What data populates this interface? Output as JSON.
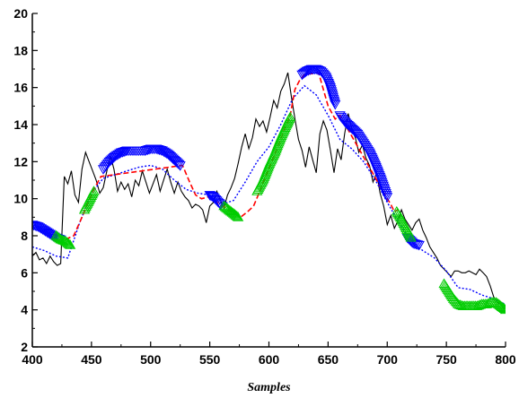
{
  "chart_data": {
    "type": "line",
    "title": "",
    "xlabel": "Samples",
    "ylabel": "",
    "xlim": [
      400,
      800
    ],
    "ylim": [
      2,
      20
    ],
    "x_ticks": [
      400,
      450,
      500,
      550,
      600,
      650,
      700,
      750,
      800
    ],
    "y_ticks": [
      2,
      4,
      6,
      8,
      10,
      12,
      14,
      16,
      18,
      20
    ],
    "grid": false,
    "legend": "none",
    "colors": {
      "measured": "#000000",
      "smooth": "#0000ff",
      "transition": "#ff0000",
      "regime_a": "#0000ff",
      "regime_b": "#00cc00"
    },
    "series": [
      {
        "key": "measured",
        "style": "solid",
        "x": [
          400,
          403,
          406,
          409,
          412,
          415,
          418,
          421,
          424,
          427,
          430,
          433,
          436,
          439,
          442,
          445,
          448,
          451,
          454,
          457,
          460,
          463,
          466,
          469,
          472,
          475,
          478,
          481,
          484,
          487,
          490,
          493,
          496,
          499,
          502,
          505,
          508,
          511,
          514,
          517,
          520,
          523,
          526,
          529,
          532,
          535,
          538,
          541,
          544,
          547,
          550,
          553,
          556,
          559,
          562,
          565,
          568,
          571,
          574,
          577,
          580,
          583,
          586,
          589,
          592,
          595,
          598,
          601,
          604,
          607,
          610,
          613,
          616,
          619,
          622,
          625,
          628,
          631,
          634,
          637,
          640,
          643,
          646,
          649,
          652,
          655,
          658,
          661,
          664,
          667,
          670,
          673,
          676,
          679,
          682,
          685,
          688,
          691,
          694,
          697,
          700,
          703,
          706,
          709,
          712,
          715,
          718,
          721,
          724,
          727,
          730,
          733,
          736,
          739,
          742,
          745,
          748,
          751,
          754,
          757,
          760,
          763,
          766,
          769,
          772,
          775,
          778,
          781,
          784,
          787,
          790,
          793,
          796,
          799
        ],
        "y": [
          6.9,
          7.1,
          6.7,
          6.8,
          6.5,
          6.9,
          6.6,
          6.4,
          6.5,
          11.2,
          10.8,
          11.5,
          10.2,
          9.8,
          11.6,
          12.5,
          12.0,
          11.5,
          11.0,
          10.3,
          10.6,
          11.5,
          12.3,
          11.6,
          10.4,
          10.9,
          10.5,
          10.8,
          10.1,
          11.0,
          10.7,
          11.5,
          10.9,
          10.3,
          10.8,
          11.3,
          10.4,
          11.0,
          11.6,
          10.9,
          10.3,
          10.9,
          10.4,
          10.1,
          9.9,
          9.5,
          9.7,
          9.6,
          9.4,
          8.7,
          9.6,
          9.8,
          10.4,
          9.9,
          9.5,
          10.2,
          10.6,
          11.1,
          11.9,
          12.8,
          13.5,
          12.7,
          13.3,
          14.3,
          13.9,
          14.2,
          13.6,
          14.4,
          15.3,
          14.9,
          15.8,
          16.2,
          16.8,
          15.5,
          14.3,
          13.2,
          12.6,
          11.7,
          12.8,
          12.1,
          11.4,
          13.5,
          14.2,
          13.7,
          12.6,
          11.4,
          12.7,
          12.1,
          13.5,
          14.6,
          13.8,
          13.3,
          12.5,
          12.9,
          12.2,
          11.8,
          10.9,
          11.4,
          10.3,
          9.6,
          8.6,
          9.1,
          8.4,
          8.8,
          9.4,
          8.9,
          8.6,
          8.3,
          8.7,
          8.9,
          8.3,
          7.9,
          7.4,
          7.1,
          6.8,
          6.4,
          6.2,
          6.0,
          5.8,
          6.1,
          6.1,
          6.0,
          6.0,
          6.1,
          6.0,
          5.9,
          6.2,
          6.0,
          5.8,
          5.3,
          4.7,
          4.4,
          4.3,
          4.0
        ]
      },
      {
        "key": "smooth",
        "style": "dotted",
        "x": [
          400,
          410,
          420,
          430,
          440,
          450,
          460,
          470,
          480,
          490,
          500,
          510,
          520,
          530,
          540,
          550,
          560,
          570,
          580,
          590,
          600,
          610,
          620,
          630,
          640,
          650,
          660,
          670,
          680,
          690,
          700,
          710,
          720,
          730,
          740,
          750,
          760,
          770,
          780,
          790,
          800
        ],
        "y": [
          7.4,
          7.2,
          6.9,
          6.8,
          8.7,
          10.3,
          11.1,
          11.3,
          11.5,
          11.7,
          11.8,
          11.6,
          11.0,
          10.5,
          10.3,
          10.2,
          9.7,
          9.9,
          10.9,
          12.0,
          12.8,
          14.0,
          15.4,
          16.1,
          15.6,
          14.5,
          13.2,
          12.7,
          12.0,
          11.0,
          9.8,
          8.7,
          7.7,
          7.2,
          6.8,
          6.1,
          5.2,
          5.1,
          4.8,
          4.6,
          4.3
        ]
      },
      {
        "key": "transition",
        "style": "dashed",
        "x": [
          428,
          435,
          442,
          452,
          458,
          527,
          533,
          538,
          543,
          549,
          576,
          582,
          587,
          591,
          618,
          622,
          626,
          630,
          642,
          650,
          656,
          660,
          700,
          703,
          706,
          709
        ],
        "y": [
          7.8,
          8.0,
          9.0,
          10.5,
          11.2,
          11.8,
          10.9,
          10.2,
          10.0,
          10.1,
          9.0,
          9.3,
          9.6,
          10.2,
          14.5,
          15.9,
          16.4,
          16.7,
          16.8,
          15.0,
          14.3,
          14.5,
          10.0,
          9.7,
          9.3,
          9.4
        ]
      },
      {
        "key": "regime_a",
        "style": "triangles-down",
        "segments": [
          {
            "x": [
              400,
              405,
              410,
              415,
              420,
              424
            ],
            "y": [
              8.6,
              8.5,
              8.3,
              8.1,
              7.9,
              7.8
            ]
          },
          {
            "x": [
              460,
              465,
              470,
              475,
              480,
              485,
              490,
              495,
              500,
              505,
              510,
              515,
              520,
              525
            ],
            "y": [
              11.6,
              12.0,
              12.3,
              12.5,
              12.6,
              12.6,
              12.6,
              12.6,
              12.7,
              12.7,
              12.6,
              12.4,
              12.1,
              11.8
            ]
          },
          {
            "x": [
              550,
              553,
              556,
              559
            ],
            "y": [
              10.2,
              10.1,
              9.9,
              9.7
            ]
          },
          {
            "x": [
              628,
              632,
              636,
              640,
              644,
              648,
              652,
              656
            ],
            "y": [
              16.7,
              16.9,
              17.0,
              17.0,
              16.9,
              16.6,
              16.0,
              15.1
            ]
          },
          {
            "x": [
              660,
              665,
              670,
              675,
              680,
              685,
              690,
              695,
              700
            ],
            "y": [
              14.5,
              14.1,
              13.8,
              13.5,
              13.0,
              12.5,
              11.8,
              11.0,
              10.1
            ]
          },
          {
            "x": [
              717,
              722,
              727
            ],
            "y": [
              7.9,
              7.6,
              7.5
            ]
          }
        ]
      },
      {
        "key": "regime_b",
        "style": "triangles-up",
        "segments": [
          {
            "x": [
              420,
              424,
              428,
              432
            ],
            "y": [
              8.0,
              7.8,
              7.7,
              7.5
            ]
          },
          {
            "x": [
              444,
              448,
              452
            ],
            "y": [
              9.4,
              9.9,
              10.4
            ]
          },
          {
            "x": [
              562,
              566,
              570,
              574
            ],
            "y": [
              9.6,
              9.4,
              9.2,
              9.0
            ]
          },
          {
            "x": [
              590,
              595,
              600,
              605,
              610,
              615,
              618
            ],
            "y": [
              10.4,
              11.0,
              11.8,
              12.5,
              13.3,
              14.0,
              14.4
            ]
          },
          {
            "x": [
              708,
              712,
              716,
              720
            ],
            "y": [
              9.3,
              8.9,
              8.4,
              7.9
            ]
          },
          {
            "x": [
              748,
              752,
              756,
              760,
              764,
              768,
              772,
              776,
              780,
              784,
              788,
              792,
              796,
              800
            ],
            "y": [
              5.4,
              5.0,
              4.6,
              4.3,
              4.2,
              4.2,
              4.2,
              4.2,
              4.3,
              4.3,
              4.4,
              4.4,
              4.2,
              4.0
            ]
          }
        ]
      }
    ]
  }
}
